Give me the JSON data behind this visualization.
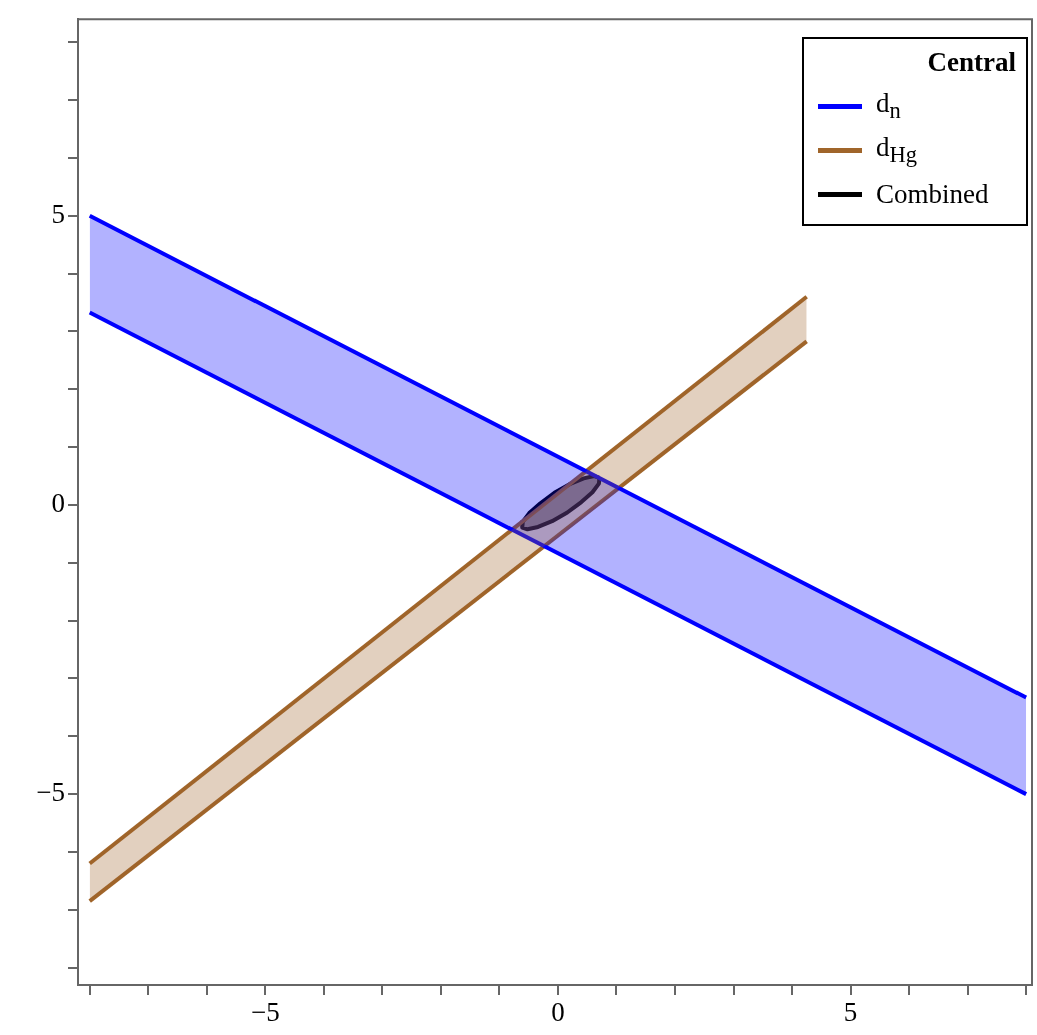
{
  "chart_data": {
    "type": "line",
    "legend_title": "Central",
    "legend": "top right",
    "marker": "none",
    "grid": false,
    "xlim": [
      -8.2,
      8.1
    ],
    "ylim": [
      -8.3,
      8.4
    ],
    "xticks": [
      {
        "value": -8,
        "label": null
      },
      {
        "value": -7,
        "label": null
      },
      {
        "value": -6,
        "label": null
      },
      {
        "value": -5,
        "label": "−5"
      },
      {
        "value": -4,
        "label": null
      },
      {
        "value": -3,
        "label": null
      },
      {
        "value": -2,
        "label": null
      },
      {
        "value": -1,
        "label": null
      },
      0,
      {
        "value": 1,
        "label": null
      },
      {
        "value": 2,
        "label": null
      },
      {
        "value": 3,
        "label": null
      },
      {
        "value": 4,
        "label": null
      },
      5,
      {
        "value": 6,
        "label": null
      },
      {
        "value": 7,
        "label": null
      },
      {
        "value": 8,
        "label": null
      }
    ],
    "yticks": [
      {
        "value": -8,
        "label": null
      },
      {
        "value": -7,
        "label": null
      },
      {
        "value": -6,
        "label": null
      },
      {
        "value": -5,
        "label": "−5"
      },
      {
        "value": -4,
        "label": null
      },
      {
        "value": -3,
        "label": null
      },
      {
        "value": -2,
        "label": null
      },
      {
        "value": -1,
        "label": null
      },
      0,
      {
        "value": 1,
        "label": null
      },
      {
        "value": 2,
        "label": null
      },
      {
        "value": 3,
        "label": null
      },
      {
        "value": 4,
        "label": null
      },
      5,
      {
        "value": 6,
        "label": null
      },
      {
        "value": 7,
        "label": null
      },
      {
        "value": 8,
        "label": null
      }
    ],
    "series": [
      {
        "name": "d$_{n}$",
        "color": "#0000ff",
        "x": [
          -8,
          8
        ],
        "values": [
          5,
          -3.33
        ],
        "lower": [
          3.33,
          -5
        ],
        "upper": [
          5,
          -3.33
        ]
      },
      {
        "color": "#0000ff",
        "x": [
          -8,
          8
        ],
        "values": [
          3.33,
          -5
        ]
      },
      {
        "name": "d$_{Hg}$",
        "color": "#a0652a",
        "x": [
          -8,
          4.25
        ],
        "values": [
          -6.2,
          3.6
        ],
        "lower": [
          -6.85,
          2.83
        ],
        "upper": [
          -6.2,
          3.6
        ]
      },
      {
        "color": "#a0652a",
        "x": [
          -8,
          4.25
        ],
        "values": [
          -6.85,
          2.83
        ]
      },
      {
        "name": "Combined",
        "type": "area",
        "color": "#000000",
        "x": [
          0.71,
          0.62,
          0.44,
          0.2,
          -0.06,
          -0.3,
          -0.49,
          -0.6,
          -0.61,
          -0.52,
          -0.34,
          -0.1,
          0.16,
          0.4,
          0.59,
          0.7,
          0.71
        ],
        "values": [
          0.47,
          0.5,
          0.46,
          0.36,
          0.21,
          0.03,
          -0.14,
          -0.29,
          -0.39,
          -0.42,
          -0.38,
          -0.28,
          -0.13,
          0.05,
          0.22,
          0.37,
          0.47
        ]
      }
    ]
  }
}
